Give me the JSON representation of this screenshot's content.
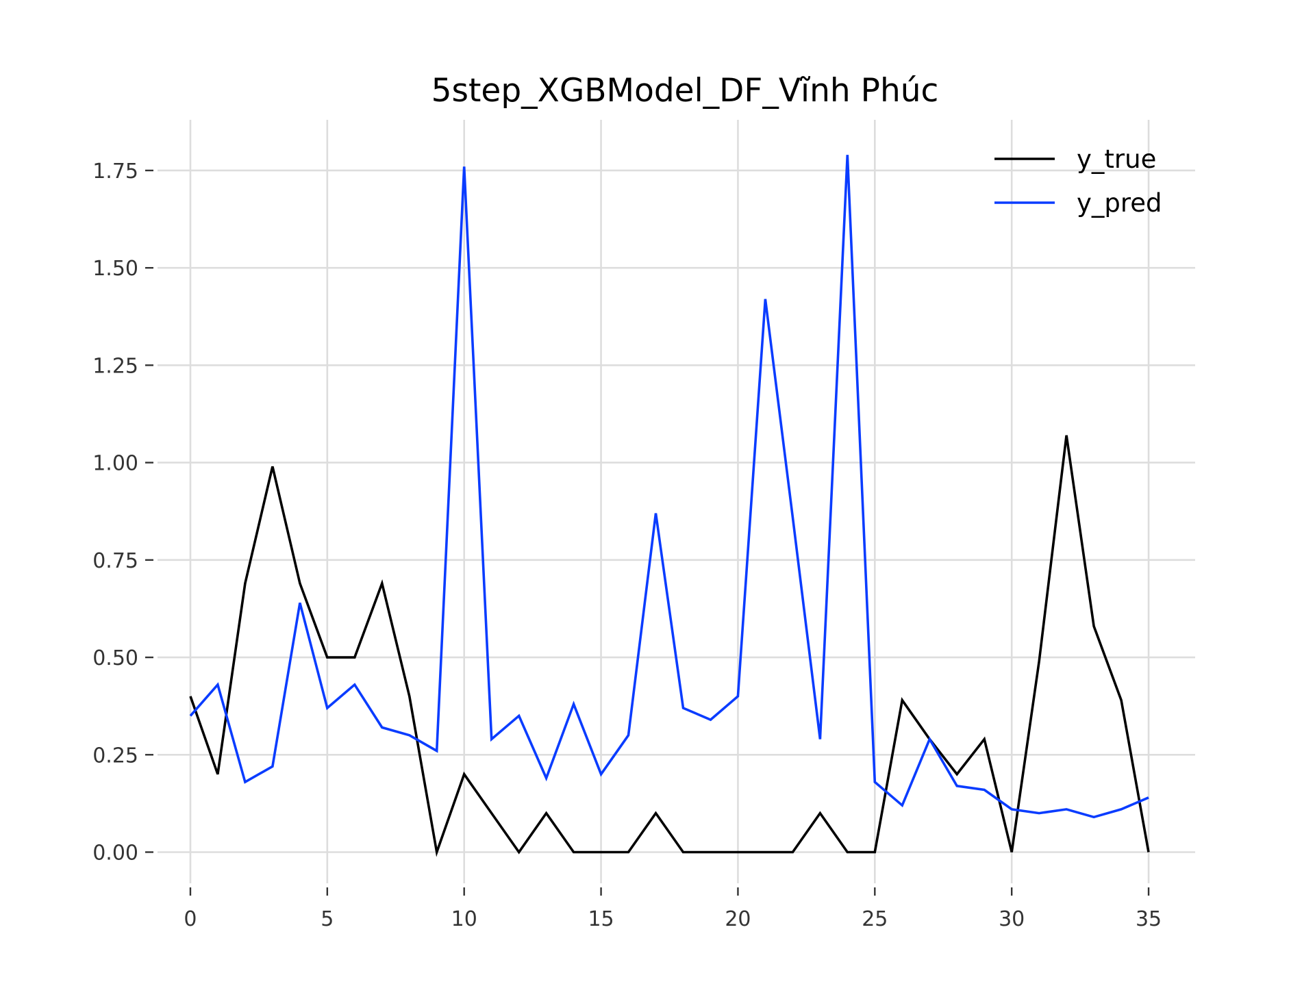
{
  "chart_data": {
    "type": "line",
    "title": "5step_XGBModel_DF_Vĩnh Phúc",
    "xlabel": "",
    "ylabel": "",
    "xlim": [
      -1.2,
      36.7
    ],
    "ylim": [
      -0.08,
      1.88
    ],
    "grid": true,
    "legend_position": "top-right",
    "x_ticks": [
      0,
      5,
      10,
      15,
      20,
      25,
      30,
      35
    ],
    "y_ticks": [
      0.0,
      0.25,
      0.5,
      0.75,
      1.0,
      1.25,
      1.5,
      1.75
    ],
    "y_tick_labels": [
      "0.00",
      "0.25",
      "0.50",
      "0.75",
      "1.00",
      "1.25",
      "1.50",
      "1.75"
    ],
    "x": [
      0,
      1,
      2,
      3,
      4,
      5,
      6,
      7,
      8,
      9,
      10,
      11,
      12,
      13,
      14,
      15,
      16,
      17,
      18,
      19,
      20,
      21,
      22,
      23,
      24,
      25,
      26,
      27,
      28,
      29,
      30,
      31,
      32,
      33,
      34,
      35
    ],
    "series": [
      {
        "name": "y_true",
        "color": "#000000",
        "values": [
          0.4,
          0.2,
          0.69,
          0.99,
          0.69,
          0.5,
          0.5,
          0.69,
          0.4,
          0.0,
          0.2,
          0.1,
          0.0,
          0.1,
          0.0,
          0.0,
          0.0,
          0.1,
          0.0,
          0.0,
          0.0,
          0.0,
          0.0,
          0.1,
          0.0,
          0.0,
          0.39,
          0.29,
          0.2,
          0.29,
          0.0,
          0.49,
          1.07,
          0.58,
          0.39,
          0.0
        ]
      },
      {
        "name": "y_pred",
        "color": "#0a3cff",
        "values": [
          0.35,
          0.43,
          0.18,
          0.22,
          0.64,
          0.37,
          0.43,
          0.32,
          0.3,
          0.26,
          1.76,
          0.29,
          0.35,
          0.19,
          0.38,
          0.2,
          0.3,
          0.87,
          0.37,
          0.34,
          0.4,
          1.42,
          0.86,
          0.29,
          1.79,
          0.18,
          0.12,
          0.29,
          0.17,
          0.16,
          0.11,
          0.1,
          0.11,
          0.09,
          0.11,
          0.14
        ]
      }
    ]
  }
}
